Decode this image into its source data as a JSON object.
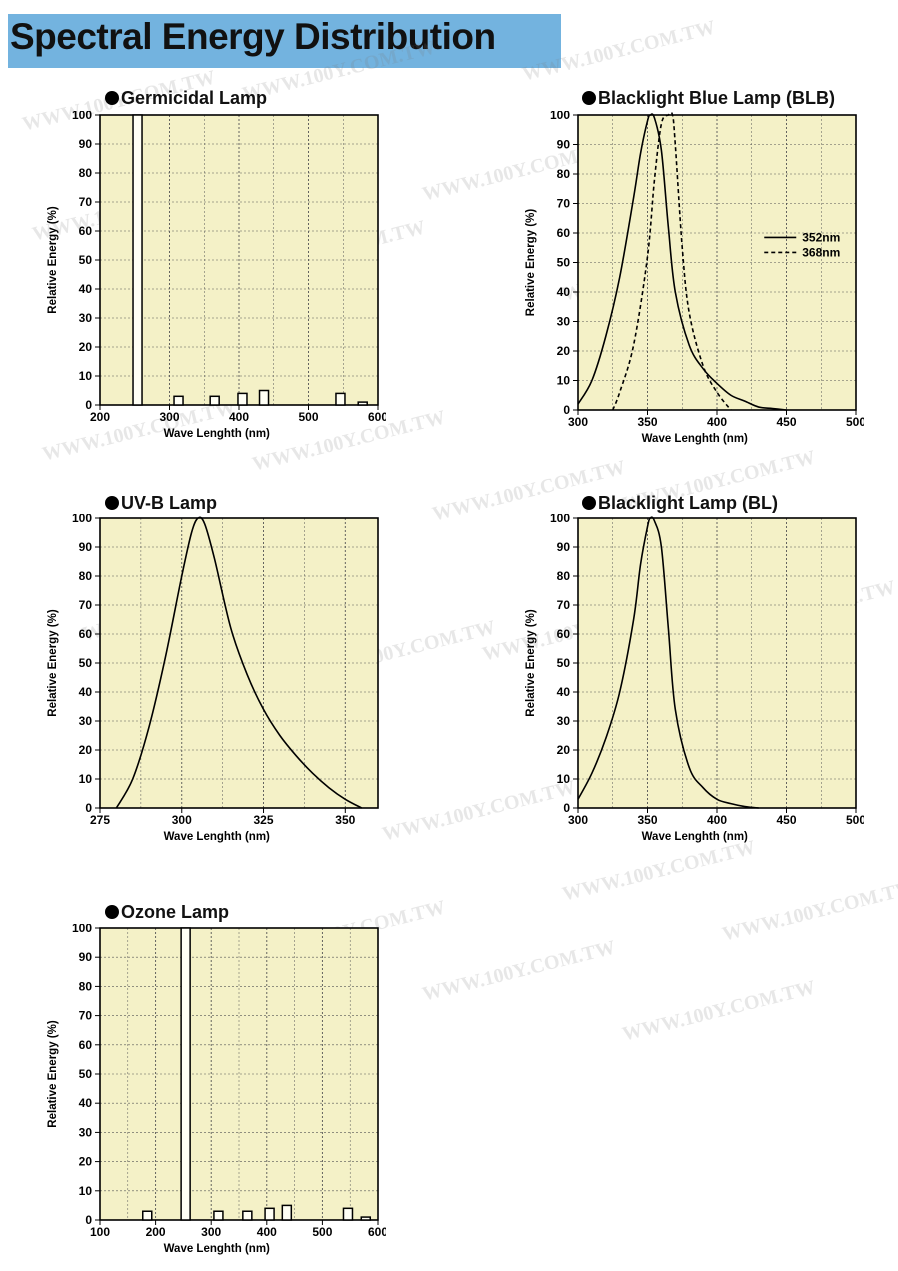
{
  "page": {
    "title": "Spectral Energy Distribution",
    "watermark": "WWW.100Y.COM.TW"
  },
  "colors": {
    "banner": "#73b3df",
    "plot_background": "#f4f1c7",
    "grid": "#555555",
    "line": "#000000"
  },
  "chart_data": [
    {
      "type": "bar",
      "title": "Germicidal Lamp",
      "xlabel": "Wave Lenghth (nm)",
      "ylabel": "Relative Energy (%)",
      "xlim": [
        200,
        600
      ],
      "ylim": [
        0,
        100
      ],
      "xticks": [
        200,
        300,
        400,
        500,
        600
      ],
      "yticks": [
        0,
        10,
        20,
        30,
        40,
        50,
        60,
        70,
        80,
        90,
        100
      ],
      "grid": true,
      "bars": [
        {
          "x": 254,
          "value": 100
        },
        {
          "x": 313,
          "value": 3
        },
        {
          "x": 365,
          "value": 3
        },
        {
          "x": 405,
          "value": 4
        },
        {
          "x": 436,
          "value": 5
        },
        {
          "x": 546,
          "value": 4
        },
        {
          "x": 578,
          "value": 1
        }
      ]
    },
    {
      "type": "line",
      "title": "Blacklight Blue Lamp (BLB)",
      "xlabel": "Wave Lenghth (nm)",
      "ylabel": "Relative Energy (%)",
      "xlim": [
        300,
        500
      ],
      "ylim": [
        0,
        100
      ],
      "xticks": [
        300,
        350,
        400,
        450,
        500
      ],
      "yticks": [
        0,
        10,
        20,
        30,
        40,
        50,
        60,
        70,
        80,
        90,
        100
      ],
      "grid": true,
      "legend": "right",
      "series": [
        {
          "name": "352nm",
          "style": "solid",
          "x": [
            300,
            310,
            320,
            330,
            340,
            345,
            350,
            352,
            355,
            360,
            365,
            370,
            380,
            390,
            400,
            410,
            420,
            430,
            440,
            450
          ],
          "y": [
            2,
            10,
            25,
            45,
            72,
            87,
            98,
            100,
            99,
            88,
            62,
            40,
            22,
            14,
            9,
            5,
            3,
            1,
            0.5,
            0
          ]
        },
        {
          "name": "368nm",
          "style": "dashed",
          "x": [
            325,
            330,
            340,
            350,
            355,
            360,
            365,
            368,
            370,
            375,
            380,
            390,
            400,
            410
          ],
          "y": [
            0,
            6,
            22,
            52,
            78,
            97,
            100,
            100,
            90,
            55,
            33,
            15,
            6,
            0
          ]
        }
      ]
    },
    {
      "type": "line",
      "title": "UV-B Lamp",
      "xlabel": "Wave Lenghth (nm)",
      "ylabel": "Relative Energy (%)",
      "xlim": [
        275,
        360
      ],
      "ylim": [
        0,
        100
      ],
      "xticks": [
        275,
        300,
        325,
        350
      ],
      "yticks": [
        0,
        10,
        20,
        30,
        40,
        50,
        60,
        70,
        80,
        90,
        100
      ],
      "grid": true,
      "series": [
        {
          "style": "solid",
          "x": [
            280,
            285,
            290,
            295,
            300,
            303,
            305,
            307,
            310,
            315,
            320,
            325,
            330,
            335,
            340,
            345,
            350,
            355
          ],
          "y": [
            0,
            10,
            28,
            52,
            80,
            95,
            100,
            98,
            86,
            62,
            46,
            34,
            25,
            18,
            12,
            7,
            3,
            0
          ]
        }
      ]
    },
    {
      "type": "line",
      "title": "Blacklight Lamp (BL)",
      "xlabel": "Wave Lenghth (nm)",
      "ylabel": "Relative Energy (%)",
      "xlim": [
        300,
        500
      ],
      "ylim": [
        0,
        100
      ],
      "xticks": [
        300,
        350,
        400,
        450,
        500
      ],
      "yticks": [
        0,
        10,
        20,
        30,
        40,
        50,
        60,
        70,
        80,
        90,
        100
      ],
      "grid": true,
      "series": [
        {
          "style": "solid",
          "x": [
            300,
            310,
            320,
            330,
            340,
            345,
            350,
            352,
            355,
            360,
            365,
            370,
            380,
            390,
            400,
            410,
            420,
            430
          ],
          "y": [
            3,
            12,
            24,
            40,
            65,
            84,
            97,
            100,
            99,
            90,
            62,
            34,
            14,
            7,
            3,
            1.5,
            0.5,
            0
          ]
        }
      ]
    },
    {
      "type": "bar",
      "title": "Ozone Lamp",
      "xlabel": "Wave Lenghth (nm)",
      "ylabel": "Relative Energy (%)",
      "xlim": [
        100,
        600
      ],
      "ylim": [
        0,
        100
      ],
      "xticks": [
        100,
        200,
        300,
        400,
        500,
        600
      ],
      "yticks": [
        0,
        10,
        20,
        30,
        40,
        50,
        60,
        70,
        80,
        90,
        100
      ],
      "grid": true,
      "bars": [
        {
          "x": 185,
          "value": 3
        },
        {
          "x": 254,
          "value": 100
        },
        {
          "x": 313,
          "value": 3
        },
        {
          "x": 365,
          "value": 3
        },
        {
          "x": 405,
          "value": 4
        },
        {
          "x": 436,
          "value": 5
        },
        {
          "x": 546,
          "value": 4
        },
        {
          "x": 578,
          "value": 1
        }
      ]
    }
  ]
}
